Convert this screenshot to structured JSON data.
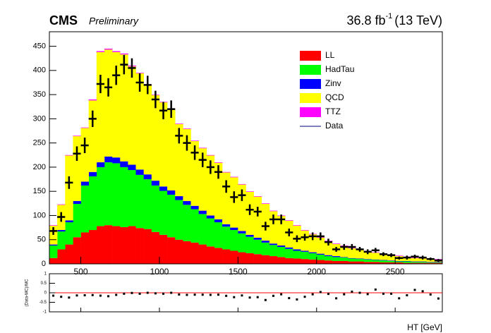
{
  "chart_data": [
    {
      "type": "stacked_histogram",
      "title": "CMS",
      "subtitle": "Preliminary",
      "lumi": {
        "main": "36.8 fb",
        "sup": "-1",
        "rest": "(13 TeV)"
      },
      "bins": [
        300,
        350,
        400,
        450,
        500,
        550,
        600,
        650,
        700,
        750,
        800,
        850,
        900,
        950,
        1000,
        1050,
        1100,
        1150,
        1200,
        1250,
        1300,
        1350,
        1400,
        1450,
        1500,
        1550,
        1600,
        1650,
        1700,
        1750,
        1800,
        1850,
        1900,
        1950,
        2000,
        2050,
        2100,
        2150,
        2200,
        2250,
        2300,
        2350,
        2400,
        2450,
        2500,
        2550,
        2600,
        2650,
        2700,
        2750,
        2800
      ],
      "xlim": [
        300,
        2800
      ],
      "xticks": [
        500,
        1000,
        1500,
        2000,
        2500
      ],
      "ylim": [
        0,
        480
      ],
      "yticks": [
        0,
        50,
        100,
        150,
        200,
        250,
        300,
        350,
        400,
        450
      ],
      "series": [
        {
          "name": "LL",
          "color": "#ff0000",
          "values": [
            12,
            30,
            40,
            55,
            65,
            70,
            78,
            80,
            78,
            76,
            78,
            74,
            72,
            66,
            60,
            55,
            50,
            47,
            44,
            40,
            36,
            33,
            30,
            27,
            24,
            22,
            20,
            18,
            16,
            14,
            12,
            11,
            10,
            9,
            8,
            7,
            6,
            6,
            5,
            5,
            4,
            4,
            3,
            3,
            3,
            2,
            2,
            2,
            2,
            2
          ]
        },
        {
          "name": "HadTau",
          "color": "#00ff00",
          "values": [
            26,
            37,
            46,
            69,
            97,
            111,
            122,
            130,
            130,
            124,
            116,
            110,
            103,
            96,
            91,
            88,
            82,
            75,
            69,
            63,
            58,
            53,
            47,
            43,
            39,
            34,
            30,
            26,
            23,
            21,
            19,
            16,
            15,
            13,
            11,
            9,
            8,
            7,
            6,
            5,
            5,
            4,
            4,
            3,
            2,
            3,
            2,
            2,
            1,
            1
          ]
        },
        {
          "name": "Zinv",
          "color": "#0000ff",
          "values": [
            2,
            3,
            4,
            6,
            8,
            9,
            10,
            12,
            12,
            12,
            11,
            11,
            10,
            10,
            9,
            9,
            8,
            8,
            7,
            7,
            6,
            6,
            5,
            5,
            5,
            4,
            4,
            4,
            3,
            3,
            3,
            3,
            2,
            2,
            2,
            2,
            2,
            1,
            1,
            1,
            1,
            1,
            1,
            1,
            1,
            1,
            1,
            1,
            1,
            1
          ]
        },
        {
          "name": "QCD",
          "color": "#ffff00",
          "values": [
            39,
            52,
            134,
            134,
            111,
            148,
            228,
            221,
            218,
            221,
            203,
            199,
            184,
            177,
            174,
            167,
            149,
            149,
            134,
            129,
            124,
            117,
            107,
            104,
            96,
            89,
            85,
            76,
            67,
            61,
            55,
            49,
            42,
            37,
            33,
            29,
            25,
            23,
            20,
            18,
            16,
            14,
            12,
            11,
            10,
            8,
            7,
            6,
            6,
            5
          ]
        },
        {
          "name": "TTZ",
          "color": "#ff00ff",
          "values": [
            1,
            1,
            1,
            1,
            1,
            2,
            2,
            2,
            2,
            2,
            2,
            1,
            1,
            1,
            1,
            1,
            1,
            1,
            1,
            1,
            1,
            1,
            1,
            1,
            1,
            1,
            1,
            1,
            1,
            1,
            1,
            1,
            1,
            1,
            1,
            1,
            1,
            1,
            1,
            1,
            1,
            1,
            1,
            1,
            1,
            1,
            1,
            1,
            1,
            1
          ]
        }
      ],
      "data": {
        "name": "Data",
        "color": "#000080",
        "values": [
          68,
          97,
          168,
          228,
          245,
          300,
          372,
          365,
          390,
          412,
          405,
          375,
          370,
          340,
          317,
          320,
          265,
          250,
          230,
          215,
          200,
          190,
          160,
          138,
          142,
          112,
          108,
          78,
          92,
          92,
          65,
          52,
          55,
          57,
          57,
          45,
          30,
          35,
          35,
          30,
          25,
          28,
          20,
          18,
          12,
          13,
          15,
          13,
          10,
          7
        ],
        "errors": [
          8,
          10,
          13,
          15,
          16,
          17,
          19,
          19,
          20,
          20,
          20,
          19,
          19,
          18,
          18,
          18,
          16,
          16,
          15,
          15,
          14,
          14,
          13,
          12,
          12,
          11,
          10,
          9,
          10,
          10,
          8,
          7,
          7,
          8,
          8,
          7,
          5,
          6,
          6,
          5,
          5,
          5,
          4,
          4,
          3,
          4,
          4,
          4,
          3,
          3
        ]
      }
    },
    {
      "type": "ratio",
      "xlabel": "HT [GeV]",
      "ylabel": "(Data-MC)/MC",
      "ylim": [
        -1,
        1
      ],
      "yticks": [
        -1,
        -0.5,
        0,
        0.5,
        1
      ],
      "values": [
        -0.15,
        -0.21,
        -0.25,
        -0.14,
        -0.13,
        -0.12,
        -0.15,
        -0.18,
        -0.11,
        -0.05,
        -0.01,
        -0.05,
        0,
        -0.03,
        -0.05,
        0,
        -0.09,
        -0.11,
        -0.1,
        -0.1,
        -0.11,
        -0.1,
        -0.16,
        -0.23,
        -0.14,
        -0.25,
        -0.23,
        -0.38,
        -0.16,
        -0.08,
        -0.28,
        -0.35,
        -0.21,
        -0.08,
        0.04,
        -0.06,
        -0.29,
        -0.08,
        0.06,
        0,
        -0.07,
        0.17,
        -0.05,
        -0.05,
        -0.29,
        -0.13,
        0.15,
        0.08,
        -0.09,
        -0.3
      ]
    }
  ]
}
